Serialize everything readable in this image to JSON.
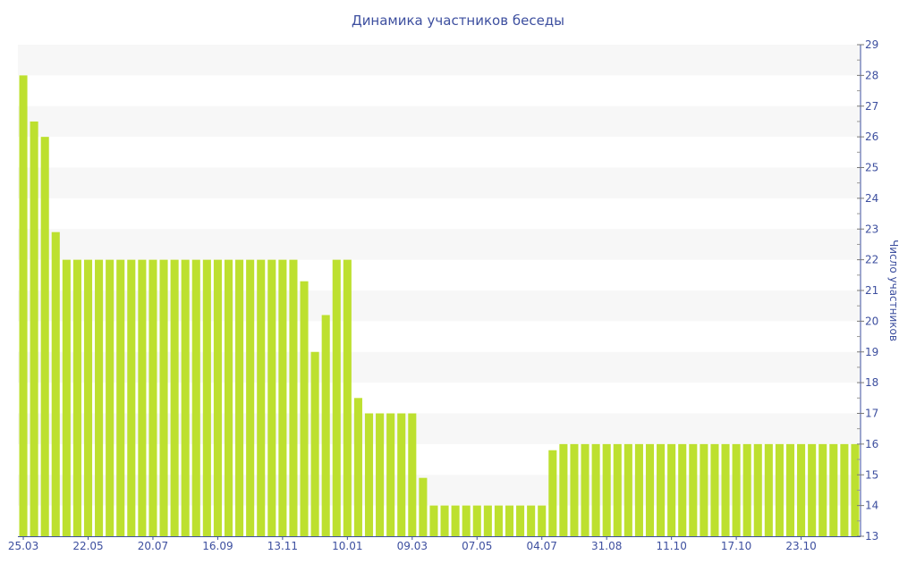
{
  "chart_data": {
    "type": "bar",
    "title": "Динамика участников беседы",
    "xlabel": "",
    "ylabel": "Число участников",
    "ylim": [
      13,
      29
    ],
    "y_ticks": [
      13,
      14,
      15,
      16,
      17,
      18,
      19,
      20,
      21,
      22,
      23,
      24,
      25,
      26,
      27,
      28,
      29
    ],
    "y_axis_side": "right",
    "grid": "alternating horizontal bands",
    "x_tick_labels": [
      "25.03",
      "22.05",
      "20.07",
      "16.09",
      "13.11",
      "10.01",
      "09.03",
      "07.05",
      "04.07",
      "31.08",
      "11.10",
      "17.10",
      "23.10"
    ],
    "x_tick_every": 6,
    "values": [
      28,
      26.5,
      26,
      22.9,
      22,
      22,
      22,
      22,
      22,
      22,
      22,
      22,
      22,
      22,
      22,
      22,
      22,
      22,
      22,
      22,
      22,
      22,
      22,
      22,
      22,
      22,
      21.3,
      19,
      20.2,
      22,
      22,
      17.5,
      17,
      17,
      17,
      17,
      17,
      14.9,
      14,
      14,
      14,
      14,
      14,
      14,
      14,
      14,
      14,
      14,
      14,
      15.8,
      16,
      16,
      16,
      16,
      16,
      16,
      16,
      16,
      16,
      16,
      16,
      16,
      16,
      16,
      16,
      16,
      16,
      16,
      16,
      16,
      16,
      16,
      16,
      16,
      16,
      16,
      16,
      16
    ],
    "colors": {
      "bar": "#bde02f",
      "axis": "#3d4f9f",
      "band": "#f7f7f7"
    }
  }
}
